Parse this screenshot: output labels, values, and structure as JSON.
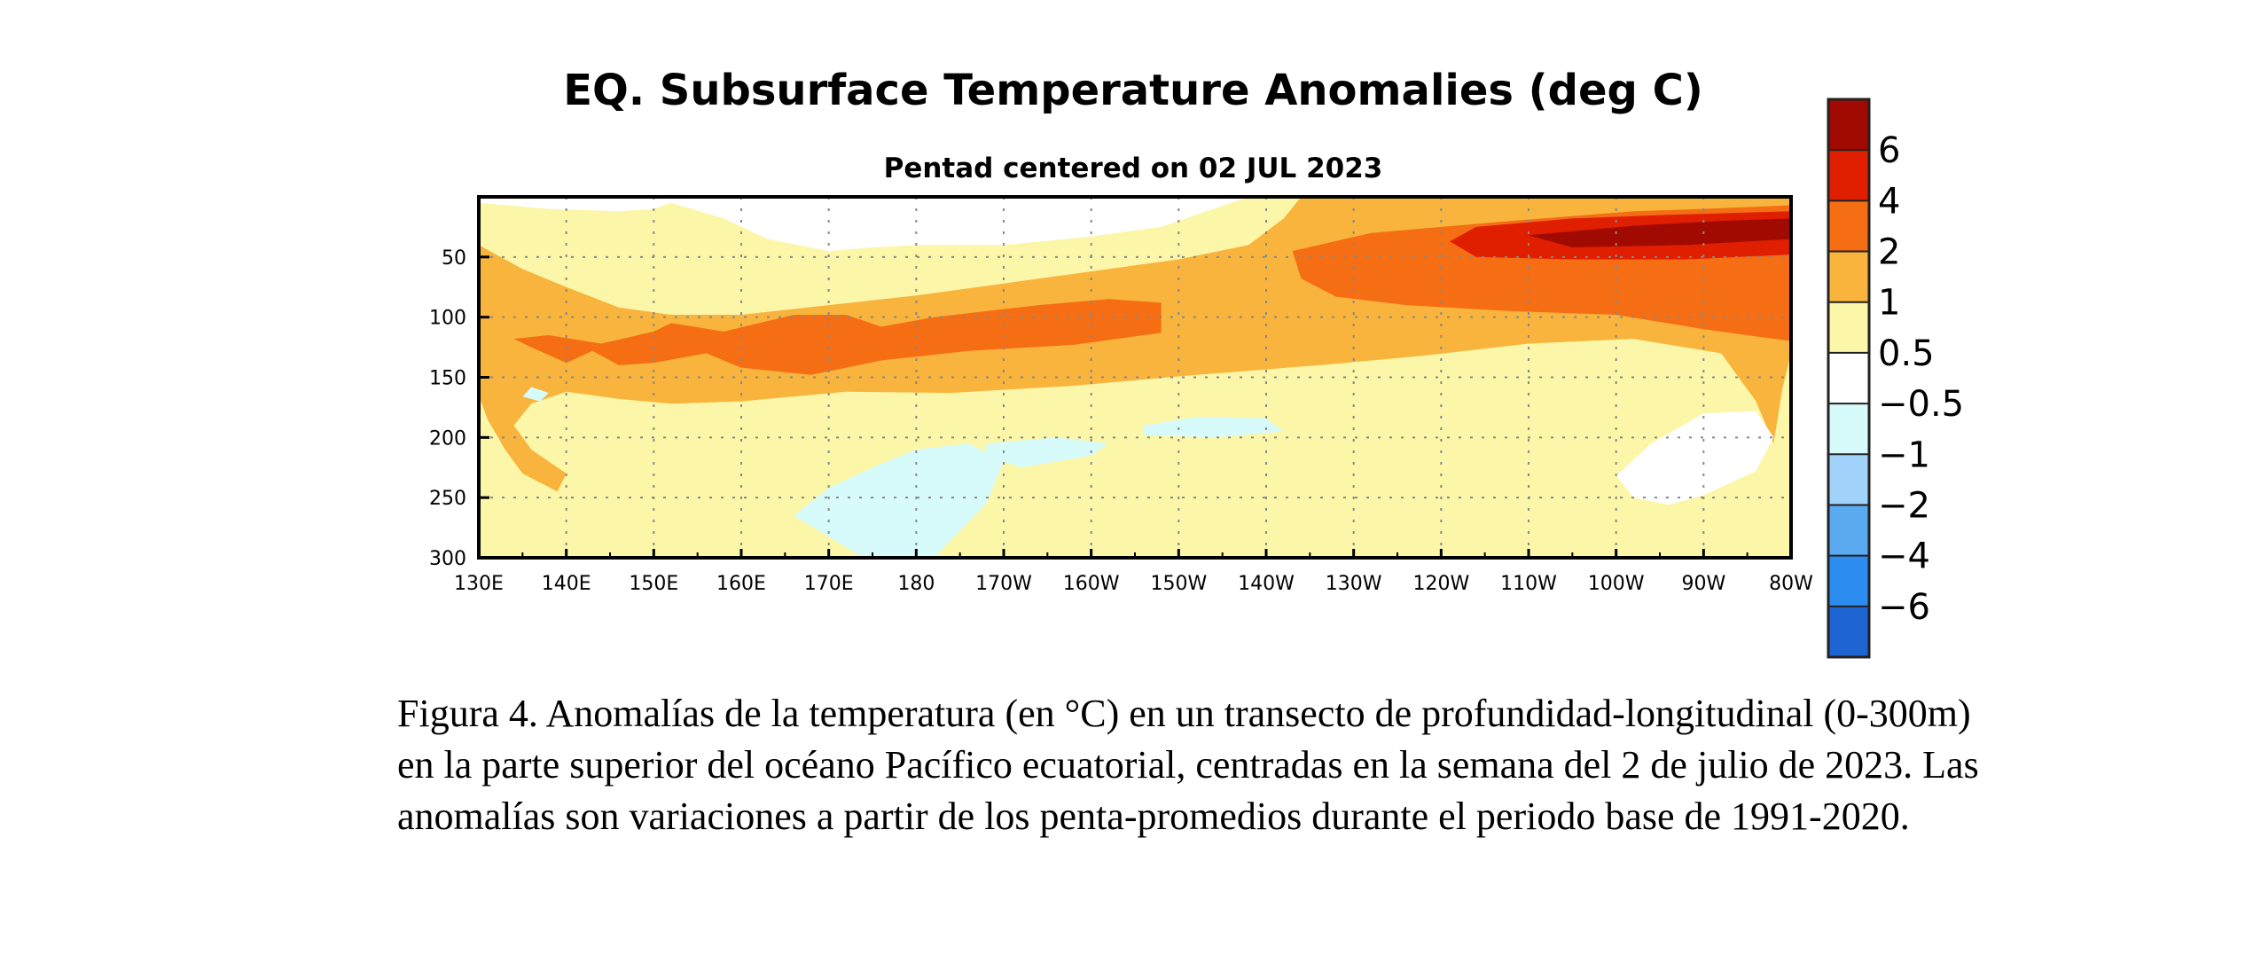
{
  "chart_data": {
    "type": "heatmap",
    "title": "EQ. Subsurface Temperature Anomalies (deg C)",
    "subtitle": "Pentad centered on 02 JUL 2023",
    "x_tick_labels": [
      "130E",
      "140E",
      "150E",
      "160E",
      "170E",
      "180",
      "170W",
      "160W",
      "150W",
      "140W",
      "130W",
      "120W",
      "110W",
      "100W",
      "90W",
      "80W"
    ],
    "x_range_deg_east": [
      130,
      280
    ],
    "y_tick_labels": [
      "50",
      "100",
      "150",
      "200",
      "250",
      "300"
    ],
    "y_range_m": [
      0,
      300
    ],
    "y_inverted": true,
    "grid": "dotted",
    "colorbar": {
      "labels": [
        "6",
        "4",
        "2",
        "1",
        "0.5",
        "−0.5",
        "−1",
        "−2",
        "−4",
        "−6"
      ],
      "colors": [
        "#a00a00",
        "#e01e00",
        "#f56e14",
        "#f8b43c",
        "#fcf6a8",
        "#ffffff",
        "#d7fafa",
        "#a0d2fa",
        "#5aaaf0",
        "#2d8cf0",
        "#1e64d2"
      ]
    },
    "anomaly_regions": [
      {
        "label": "warm_0.5_1",
        "color": "#fcf6a8",
        "poly": [
          [
            130,
            0
          ],
          [
            280,
            0
          ],
          [
            280,
            300
          ],
          [
            257,
            300
          ],
          [
            252,
            240
          ],
          [
            248,
            200
          ],
          [
            244,
            185
          ],
          [
            232,
            190
          ],
          [
            218,
            190
          ],
          [
            200,
            180
          ],
          [
            182,
            185
          ],
          [
            165,
            195
          ],
          [
            155,
            205
          ],
          [
            147,
            215
          ],
          [
            142,
            240
          ],
          [
            139,
            255
          ],
          [
            136,
            235
          ],
          [
            133,
            230
          ],
          [
            130,
            230
          ]
        ]
      },
      {
        "label": "neutral_surface_pocket",
        "color": "#ffffff",
        "poly": [
          [
            130,
            5
          ],
          [
            138,
            10
          ],
          [
            146,
            12
          ],
          [
            150,
            10
          ],
          [
            152,
            5
          ],
          [
            158,
            18
          ],
          [
            163,
            35
          ],
          [
            170,
            45
          ],
          [
            175,
            42
          ],
          [
            180,
            40
          ],
          [
            190,
            40
          ],
          [
            200,
            33
          ],
          [
            208,
            25
          ],
          [
            212,
            15
          ],
          [
            216,
            5
          ],
          [
            218,
            0
          ],
          [
            130,
            0
          ]
        ]
      },
      {
        "label": "warm_1_2",
        "color": "#f8b43c",
        "poly": [
          [
            130,
            40
          ],
          [
            135,
            60
          ],
          [
            140,
            75
          ],
          [
            146,
            92
          ],
          [
            152,
            98
          ],
          [
            160,
            98
          ],
          [
            170,
            90
          ],
          [
            180,
            82
          ],
          [
            190,
            72
          ],
          [
            200,
            62
          ],
          [
            210,
            52
          ],
          [
            218,
            40
          ],
          [
            222,
            18
          ],
          [
            224,
            0
          ],
          [
            280,
            0
          ],
          [
            280,
            130
          ],
          [
            279,
            160
          ],
          [
            278,
            205
          ],
          [
            276,
            170
          ],
          [
            272,
            130
          ],
          [
            262,
            118
          ],
          [
            250,
            122
          ],
          [
            238,
            132
          ],
          [
            226,
            140
          ],
          [
            212,
            148
          ],
          [
            198,
            157
          ],
          [
            184,
            163
          ],
          [
            172,
            162
          ],
          [
            160,
            170
          ],
          [
            152,
            172
          ],
          [
            146,
            168
          ],
          [
            140,
            162
          ],
          [
            136,
            172
          ],
          [
            134,
            190
          ],
          [
            136,
            210
          ],
          [
            138,
            220
          ],
          [
            140,
            230
          ],
          [
            139,
            245
          ],
          [
            135,
            230
          ],
          [
            133,
            210
          ],
          [
            131,
            185
          ],
          [
            130,
            165
          ]
        ]
      },
      {
        "label": "warm_2_4",
        "color": "#f56e14",
        "poly": [
          [
            152,
            105
          ],
          [
            158,
            112
          ],
          [
            166,
            98
          ],
          [
            172,
            98
          ],
          [
            176,
            108
          ],
          [
            182,
            100
          ],
          [
            188,
            95
          ],
          [
            194,
            90
          ],
          [
            202,
            85
          ],
          [
            208,
            88
          ],
          [
            208,
            113
          ],
          [
            198,
            123
          ],
          [
            186,
            128
          ],
          [
            176,
            136
          ],
          [
            168,
            148
          ],
          [
            160,
            142
          ],
          [
            156,
            130
          ],
          [
            150,
            138
          ],
          [
            146,
            140
          ],
          [
            143,
            128
          ],
          [
            140,
            138
          ],
          [
            136,
            125
          ],
          [
            134,
            118
          ],
          [
            138,
            115
          ],
          [
            144,
            122
          ],
          [
            150,
            112
          ]
        ]
      },
      {
        "label": "warm_2_4_east",
        "color": "#f56e14",
        "poly": [
          [
            223,
            45
          ],
          [
            232,
            30
          ],
          [
            248,
            20
          ],
          [
            262,
            12
          ],
          [
            270,
            10
          ],
          [
            280,
            7
          ],
          [
            280,
            120
          ],
          [
            270,
            110
          ],
          [
            260,
            98
          ],
          [
            248,
            95
          ],
          [
            236,
            90
          ],
          [
            228,
            83
          ],
          [
            224,
            68
          ]
        ]
      },
      {
        "label": "warm_4_6",
        "color": "#e01e00",
        "poly": [
          [
            241,
            37
          ],
          [
            244,
            25
          ],
          [
            255,
            18
          ],
          [
            266,
            15
          ],
          [
            280,
            12
          ],
          [
            280,
            48
          ],
          [
            268,
            52
          ],
          [
            255,
            52
          ],
          [
            244,
            50
          ]
        ]
      },
      {
        "label": "warm_gt_6",
        "color": "#a00a00",
        "poly": [
          [
            250,
            32
          ],
          [
            262,
            24
          ],
          [
            272,
            20
          ],
          [
            280,
            18
          ],
          [
            280,
            35
          ],
          [
            268,
            40
          ],
          [
            255,
            42
          ]
        ]
      },
      {
        "label": "cool_west_blob",
        "color": "#d7fafa",
        "poly": [
          [
            136,
            158
          ],
          [
            138,
            163
          ],
          [
            137,
            170
          ],
          [
            135,
            166
          ]
        ]
      },
      {
        "label": "cool_-0.5_-1_a",
        "color": "#d7fafa",
        "poly": [
          [
            166,
            265
          ],
          [
            170,
            242
          ],
          [
            175,
            225
          ],
          [
            180,
            210
          ],
          [
            186,
            205
          ],
          [
            190,
            220
          ],
          [
            188,
            255
          ],
          [
            182,
            300
          ],
          [
            174,
            300
          ]
        ]
      },
      {
        "label": "cool_-0.5_-1_b",
        "color": "#d7fafa",
        "poly": [
          [
            188,
            205
          ],
          [
            196,
            200
          ],
          [
            202,
            205
          ],
          [
            200,
            215
          ],
          [
            192,
            225
          ],
          [
            188,
            215
          ]
        ]
      },
      {
        "label": "cool_-0.5_-1_c",
        "color": "#d7fafa",
        "poly": [
          [
            206,
            190
          ],
          [
            212,
            183
          ],
          [
            220,
            184
          ],
          [
            222,
            195
          ],
          [
            214,
            200
          ],
          [
            206,
            198
          ]
        ]
      },
      {
        "label": "neutral_east_pocket",
        "color": "#ffffff",
        "poly": [
          [
            262,
            250
          ],
          [
            260,
            232
          ],
          [
            264,
            205
          ],
          [
            270,
            180
          ],
          [
            276,
            178
          ],
          [
            278,
            200
          ],
          [
            276,
            228
          ],
          [
            270,
            248
          ],
          [
            266,
            256
          ]
        ]
      }
    ]
  }
}
